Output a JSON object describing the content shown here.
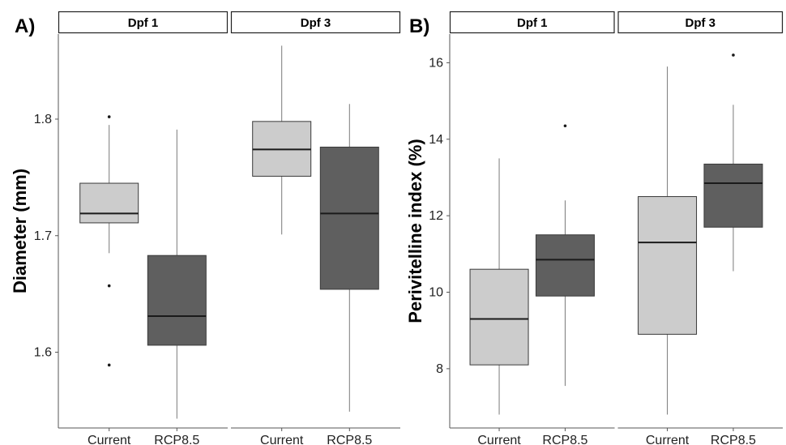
{
  "colors": {
    "current": "#cccccc",
    "rcp": "#5f5f5f",
    "line": "#1a1a1a",
    "whisker": "#7a7a7a"
  },
  "chart_data": [
    {
      "panel_label": "A)",
      "type": "boxplot",
      "ylabel": "Diameter (mm)",
      "ylim": [
        1.535,
        1.873
      ],
      "yticks": [
        "1.6",
        "1.7",
        "1.8"
      ],
      "facets": [
        {
          "name": "Dpf 1",
          "categories": [
            "Current",
            "RCP8.5"
          ],
          "boxes": [
            {
              "group": "Current",
              "whislo": 1.685,
              "q1": 1.711,
              "med": 1.719,
              "q3": 1.745,
              "whishi": 1.795,
              "outliers": [
                1.802,
                1.657,
                1.589
              ]
            },
            {
              "group": "RCP8.5",
              "whislo": 1.543,
              "q1": 1.606,
              "med": 1.631,
              "q3": 1.683,
              "whishi": 1.791,
              "outliers": []
            }
          ]
        },
        {
          "name": "Dpf 3",
          "categories": [
            "Current",
            "RCP8.5"
          ],
          "boxes": [
            {
              "group": "Current",
              "whislo": 1.701,
              "q1": 1.751,
              "med": 1.774,
              "q3": 1.798,
              "whishi": 1.863,
              "outliers": []
            },
            {
              "group": "RCP8.5",
              "whislo": 1.549,
              "q1": 1.654,
              "med": 1.719,
              "q3": 1.776,
              "whishi": 1.813,
              "outliers": []
            }
          ]
        }
      ]
    },
    {
      "panel_label": "B)",
      "type": "boxplot",
      "ylabel": "Perivitelline index (%)",
      "ylim": [
        6.45,
        16.75
      ],
      "yticks": [
        "8",
        "10",
        "12",
        "14",
        "16"
      ],
      "facets": [
        {
          "name": "Dpf 1",
          "categories": [
            "Current",
            "RCP8.5"
          ],
          "boxes": [
            {
              "group": "Current",
              "whislo": 6.8,
              "q1": 8.1,
              "med": 9.3,
              "q3": 10.6,
              "whishi": 13.5,
              "outliers": []
            },
            {
              "group": "RCP8.5",
              "whislo": 7.55,
              "q1": 9.9,
              "med": 10.85,
              "q3": 11.5,
              "whishi": 12.4,
              "outliers": [
                14.35
              ]
            }
          ]
        },
        {
          "name": "Dpf 3",
          "categories": [
            "Current",
            "RCP8.5"
          ],
          "boxes": [
            {
              "group": "Current",
              "whislo": 6.8,
              "q1": 8.9,
              "med": 11.3,
              "q3": 12.5,
              "whishi": 15.9,
              "outliers": []
            },
            {
              "group": "RCP8.5",
              "whislo": 10.55,
              "q1": 11.7,
              "med": 12.85,
              "q3": 13.35,
              "whishi": 14.9,
              "outliers": [
                16.2
              ]
            }
          ]
        }
      ]
    }
  ]
}
